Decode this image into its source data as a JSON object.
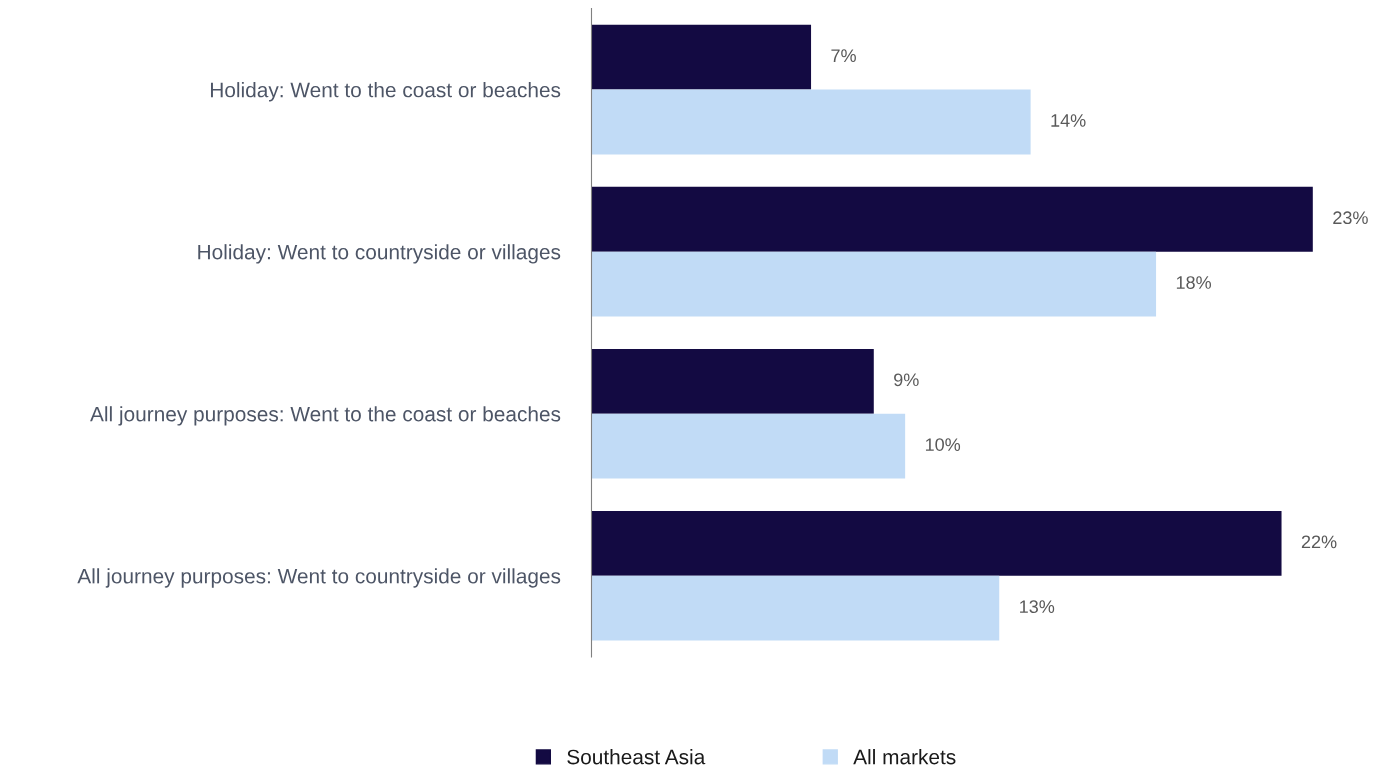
{
  "chart_data": {
    "type": "bar",
    "orientation": "horizontal",
    "categories": [
      "Holiday: Went to the coast or beaches",
      "Holiday: Went to countryside or villages",
      "All journey purposes: Went to the coast or beaches",
      "All journey purposes: Went to countryside or villages"
    ],
    "series": [
      {
        "name": "Southeast Asia",
        "color": "#130a42",
        "values": [
          7,
          23,
          9,
          22
        ],
        "value_labels": [
          "7%",
          "23%",
          "9%",
          "22%"
        ]
      },
      {
        "name": "All markets",
        "color": "#c1dbf6",
        "values": [
          14,
          18,
          10,
          13
        ],
        "value_labels": [
          "14%",
          "18%",
          "10%",
          "13%"
        ]
      }
    ],
    "legend": "bottom",
    "grid": false,
    "tick_labels": "y"
  }
}
